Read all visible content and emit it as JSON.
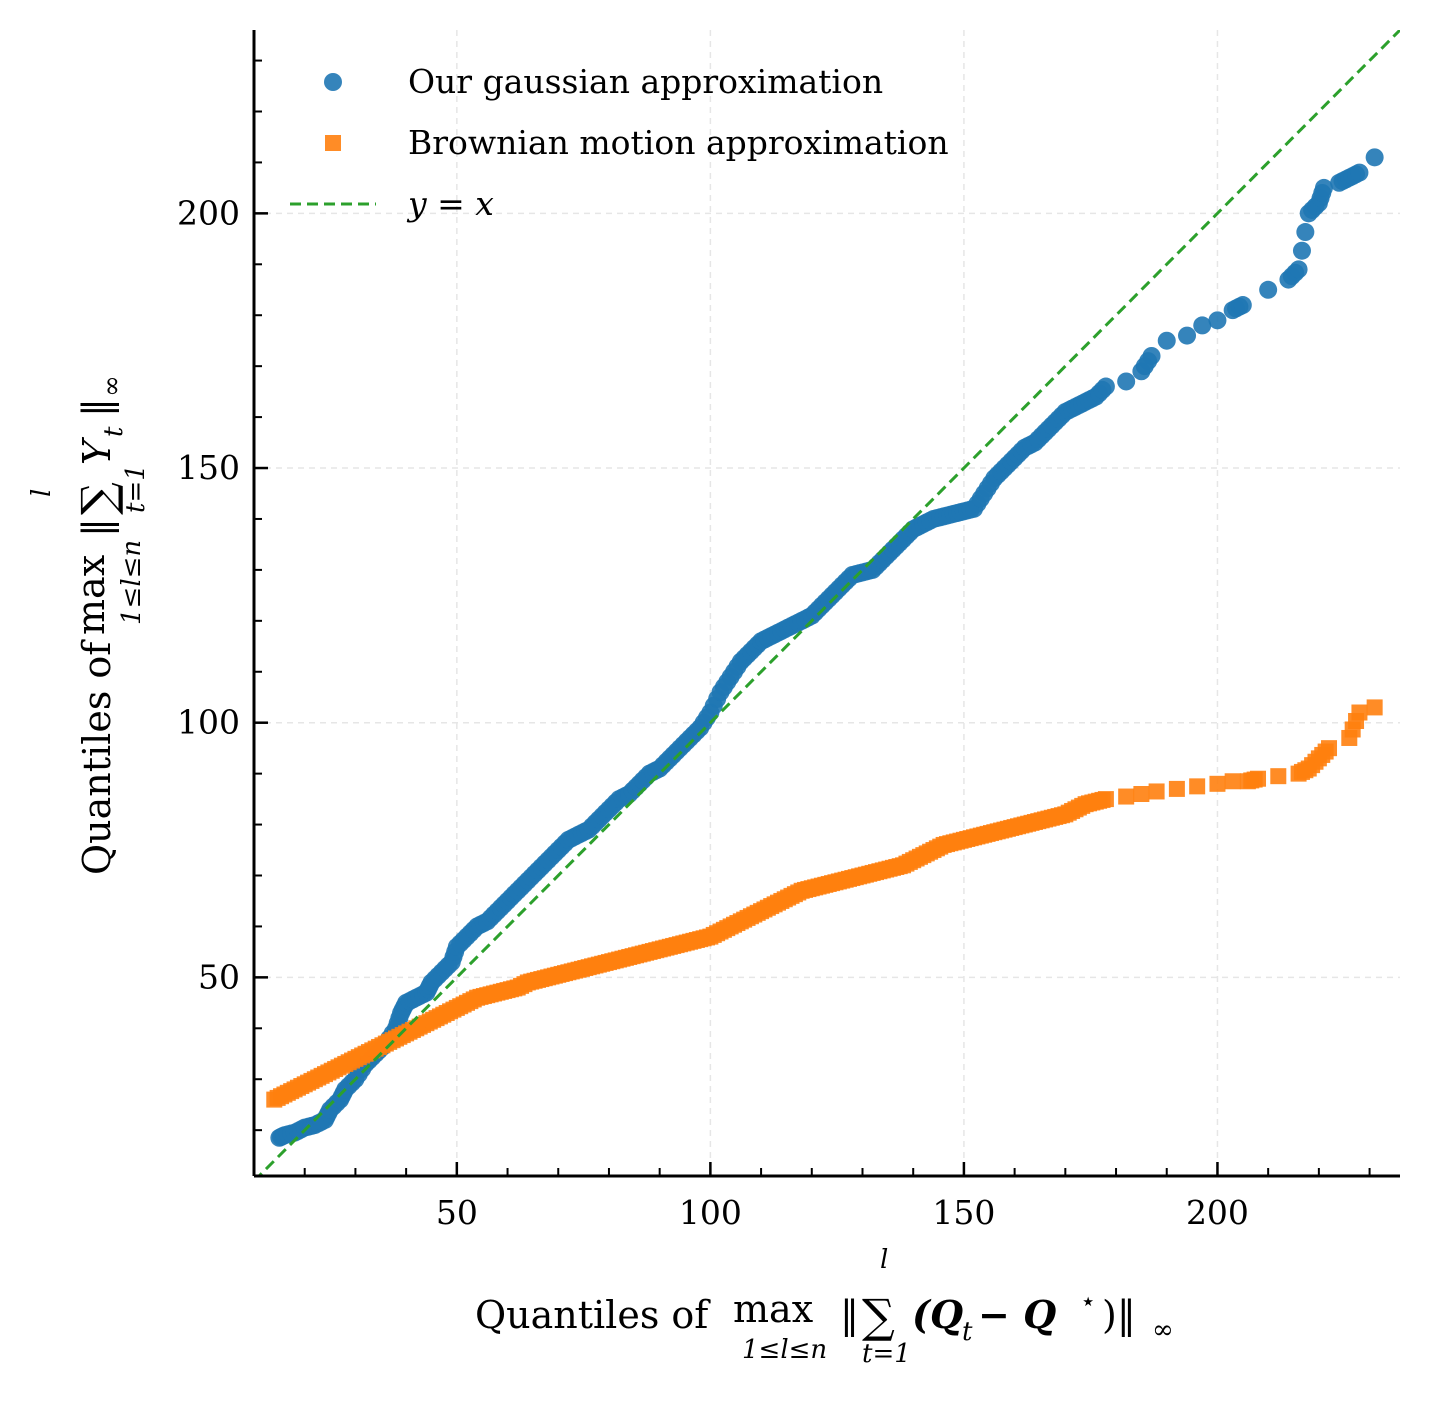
{
  "chart_data": {
    "type": "scatter",
    "title": "",
    "xlabel": {
      "prefix": "Quantiles of",
      "op": "max",
      "op_sub": "1≤l≤n",
      "norm_open": "‖",
      "sum_sup": "l",
      "sum": "∑",
      "sum_sub": "t=1",
      "body": "(Q",
      "body_sub": "t",
      "minus": " − Q",
      "body_sup": "⋆",
      "close": ")‖",
      "norm_sub": "∞"
    },
    "ylabel": {
      "prefix": "Quantiles of",
      "op": "max",
      "op_sub": "1≤l≤n",
      "norm_open": "‖",
      "sum_sup": "l",
      "sum": "∑",
      "sum_sub": "t=1",
      "body": "Y",
      "body_sub": "t",
      "close": "‖",
      "norm_sub": "∞"
    },
    "xlim": [
      10,
      236
    ],
    "ylim": [
      11,
      236
    ],
    "xticks": [
      50,
      100,
      150,
      200
    ],
    "yticks": [
      50,
      100,
      150,
      200
    ],
    "x_minor_step": 10,
    "y_minor_step": 10,
    "grid": true,
    "legend_position": "top-left",
    "series": [
      {
        "name": "Our gaussian approximation",
        "marker": "circle",
        "color": "#1f77b4",
        "x": [
          14,
          16,
          18,
          20,
          22,
          24,
          26,
          28,
          30,
          32,
          34,
          36,
          38,
          40,
          42,
          44,
          46,
          48,
          50,
          52,
          54,
          56,
          58,
          60,
          62,
          64,
          66,
          68,
          70,
          72,
          74,
          76,
          78,
          80,
          82,
          84,
          86,
          88,
          90,
          92,
          94,
          96,
          98,
          100,
          102,
          104,
          106,
          108,
          110,
          112,
          114,
          116,
          118,
          120,
          122,
          124,
          126,
          128,
          130,
          132,
          134,
          136,
          138,
          140,
          142,
          144,
          146,
          148,
          150,
          152,
          154,
          156,
          158,
          160,
          162,
          164,
          166,
          168,
          170,
          172,
          174,
          176,
          178,
          180,
          182,
          184,
          186,
          188,
          190,
          192,
          194,
          196,
          198,
          200,
          202,
          204,
          206,
          208,
          210,
          212,
          214,
          216,
          218,
          220,
          222,
          224,
          226,
          228,
          230,
          232
        ],
        "y": [
          19,
          20,
          21,
          22,
          22.5,
          24,
          26,
          29,
          31,
          34,
          36,
          38,
          40,
          45,
          46,
          47,
          49,
          51,
          56,
          59,
          61,
          62,
          64,
          66,
          67,
          68,
          70,
          72,
          74,
          76,
          78,
          79,
          80,
          82,
          85,
          86,
          88,
          89,
          91,
          92,
          94,
          96,
          97,
          99,
          104,
          108,
          111,
          114,
          116,
          117,
          118,
          119,
          120,
          121,
          124,
          126,
          127,
          129,
          130,
          131,
          132,
          134,
          136,
          138,
          139,
          140,
          140.5,
          141,
          141.5,
          142,
          146,
          148,
          151,
          153,
          155,
          156,
          158,
          159,
          161,
          162,
          163,
          164,
          165,
          165.5,
          166,
          167,
          168,
          169,
          171,
          173,
          175,
          176,
          177,
          179,
          180,
          181,
          182,
          183,
          184,
          185,
          185.5,
          186,
          187,
          201,
          205,
          206,
          206.5,
          207,
          208,
          211
        ],
        "points": [
          [
            15,
            18.5
          ],
          [
            16,
            19
          ],
          [
            18,
            19.5
          ],
          [
            20,
            20.5
          ],
          [
            22,
            21
          ],
          [
            24,
            22
          ],
          [
            25,
            24
          ],
          [
            27,
            26
          ],
          [
            28,
            28
          ],
          [
            30,
            30
          ],
          [
            32,
            33
          ],
          [
            34,
            35
          ],
          [
            36,
            37
          ],
          [
            38,
            40
          ],
          [
            39,
            43
          ],
          [
            40,
            45
          ],
          [
            42,
            46
          ],
          [
            44,
            47
          ],
          [
            45,
            49
          ],
          [
            47,
            51
          ],
          [
            49,
            53
          ],
          [
            50,
            56
          ],
          [
            52,
            58
          ],
          [
            54,
            60
          ],
          [
            56,
            61
          ],
          [
            58,
            63
          ],
          [
            60,
            65
          ],
          [
            62,
            67
          ],
          [
            64,
            69
          ],
          [
            66,
            71
          ],
          [
            68,
            73
          ],
          [
            70,
            75
          ],
          [
            72,
            77
          ],
          [
            74,
            78
          ],
          [
            76,
            79
          ],
          [
            78,
            81
          ],
          [
            80,
            83
          ],
          [
            82,
            85
          ],
          [
            84,
            86
          ],
          [
            86,
            88
          ],
          [
            88,
            90
          ],
          [
            90,
            91
          ],
          [
            92,
            93
          ],
          [
            94,
            95
          ],
          [
            96,
            97
          ],
          [
            98,
            99
          ],
          [
            100,
            102
          ],
          [
            102,
            106
          ],
          [
            104,
            109
          ],
          [
            106,
            112
          ],
          [
            108,
            114
          ],
          [
            110,
            116
          ],
          [
            112,
            117
          ],
          [
            114,
            118
          ],
          [
            116,
            119
          ],
          [
            118,
            120
          ],
          [
            120,
            121
          ],
          [
            122,
            123
          ],
          [
            124,
            125
          ],
          [
            126,
            127
          ],
          [
            128,
            129
          ],
          [
            130,
            129.5
          ],
          [
            132,
            130
          ],
          [
            134,
            132
          ],
          [
            136,
            134
          ],
          [
            138,
            136
          ],
          [
            140,
            138
          ],
          [
            142,
            139
          ],
          [
            144,
            140
          ],
          [
            146,
            140.5
          ],
          [
            148,
            141
          ],
          [
            150,
            141.5
          ],
          [
            152,
            142
          ],
          [
            154,
            145
          ],
          [
            156,
            148
          ],
          [
            158,
            150
          ],
          [
            160,
            152
          ],
          [
            162,
            154
          ],
          [
            164,
            155
          ],
          [
            166,
            157
          ],
          [
            168,
            159
          ],
          [
            170,
            161
          ],
          [
            172,
            162
          ],
          [
            174,
            163
          ],
          [
            176,
            164
          ],
          [
            178,
            166
          ],
          [
            182,
            167
          ],
          [
            185,
            169
          ],
          [
            187,
            172
          ],
          [
            190,
            175
          ],
          [
            194,
            176
          ],
          [
            197,
            178
          ],
          [
            200,
            179
          ],
          [
            203,
            181
          ],
          [
            205,
            182
          ],
          [
            210,
            185
          ],
          [
            214,
            187
          ],
          [
            216,
            189
          ],
          [
            218,
            200
          ],
          [
            220,
            202
          ],
          [
            221,
            205
          ],
          [
            224,
            206
          ],
          [
            226,
            207
          ],
          [
            228,
            208
          ],
          [
            231,
            211
          ]
        ]
      },
      {
        "name": "Brownian motion approximation",
        "marker": "square",
        "color": "#ff7f0e",
        "points": [
          [
            14,
            26
          ],
          [
            16,
            27
          ],
          [
            18,
            28
          ],
          [
            20,
            29
          ],
          [
            22,
            30
          ],
          [
            24,
            31
          ],
          [
            26,
            32
          ],
          [
            28,
            33
          ],
          [
            30,
            34
          ],
          [
            32,
            35
          ],
          [
            34,
            36
          ],
          [
            36,
            37
          ],
          [
            38,
            38
          ],
          [
            40,
            39
          ],
          [
            42,
            40
          ],
          [
            44,
            41
          ],
          [
            46,
            42
          ],
          [
            48,
            43
          ],
          [
            50,
            44
          ],
          [
            52,
            45
          ],
          [
            54,
            46
          ],
          [
            56,
            46.5
          ],
          [
            58,
            47
          ],
          [
            60,
            47.5
          ],
          [
            62,
            48
          ],
          [
            64,
            49
          ],
          [
            66,
            49.5
          ],
          [
            68,
            50
          ],
          [
            70,
            50.5
          ],
          [
            72,
            51
          ],
          [
            74,
            51.5
          ],
          [
            76,
            52
          ],
          [
            78,
            52.5
          ],
          [
            80,
            53
          ],
          [
            82,
            53.5
          ],
          [
            84,
            54
          ],
          [
            86,
            54.5
          ],
          [
            88,
            55
          ],
          [
            90,
            55.5
          ],
          [
            92,
            56
          ],
          [
            94,
            56.5
          ],
          [
            96,
            57
          ],
          [
            98,
            57.5
          ],
          [
            100,
            58
          ],
          [
            102,
            59
          ],
          [
            104,
            60
          ],
          [
            106,
            61
          ],
          [
            108,
            62
          ],
          [
            110,
            63
          ],
          [
            112,
            64
          ],
          [
            114,
            65
          ],
          [
            116,
            66
          ],
          [
            118,
            67
          ],
          [
            120,
            67.5
          ],
          [
            122,
            68
          ],
          [
            124,
            68.5
          ],
          [
            126,
            69
          ],
          [
            128,
            69.5
          ],
          [
            130,
            70
          ],
          [
            132,
            70.5
          ],
          [
            134,
            71
          ],
          [
            136,
            71.5
          ],
          [
            138,
            72
          ],
          [
            140,
            73
          ],
          [
            142,
            74
          ],
          [
            144,
            75
          ],
          [
            146,
            76
          ],
          [
            148,
            76.5
          ],
          [
            150,
            77
          ],
          [
            152,
            77.5
          ],
          [
            154,
            78
          ],
          [
            156,
            78.5
          ],
          [
            158,
            79
          ],
          [
            160,
            79.5
          ],
          [
            162,
            80
          ],
          [
            164,
            80.5
          ],
          [
            166,
            81
          ],
          [
            168,
            81.5
          ],
          [
            170,
            82
          ],
          [
            172,
            83
          ],
          [
            174,
            84
          ],
          [
            176,
            84.5
          ],
          [
            178,
            85
          ],
          [
            182,
            85.5
          ],
          [
            185,
            86
          ],
          [
            188,
            86.5
          ],
          [
            192,
            87
          ],
          [
            196,
            87.5
          ],
          [
            200,
            88
          ],
          [
            203,
            88.5
          ],
          [
            206,
            88.5
          ],
          [
            208,
            89
          ],
          [
            212,
            89.5
          ],
          [
            216,
            90
          ],
          [
            218,
            91
          ],
          [
            220,
            93
          ],
          [
            222,
            95
          ],
          [
            226,
            97
          ],
          [
            228,
            102
          ],
          [
            231,
            103
          ]
        ]
      },
      {
        "name": "y = x",
        "line_style": "dashed",
        "color": "#2ca02c",
        "x": [
          10,
          236
        ],
        "y": [
          10,
          236
        ]
      }
    ]
  }
}
